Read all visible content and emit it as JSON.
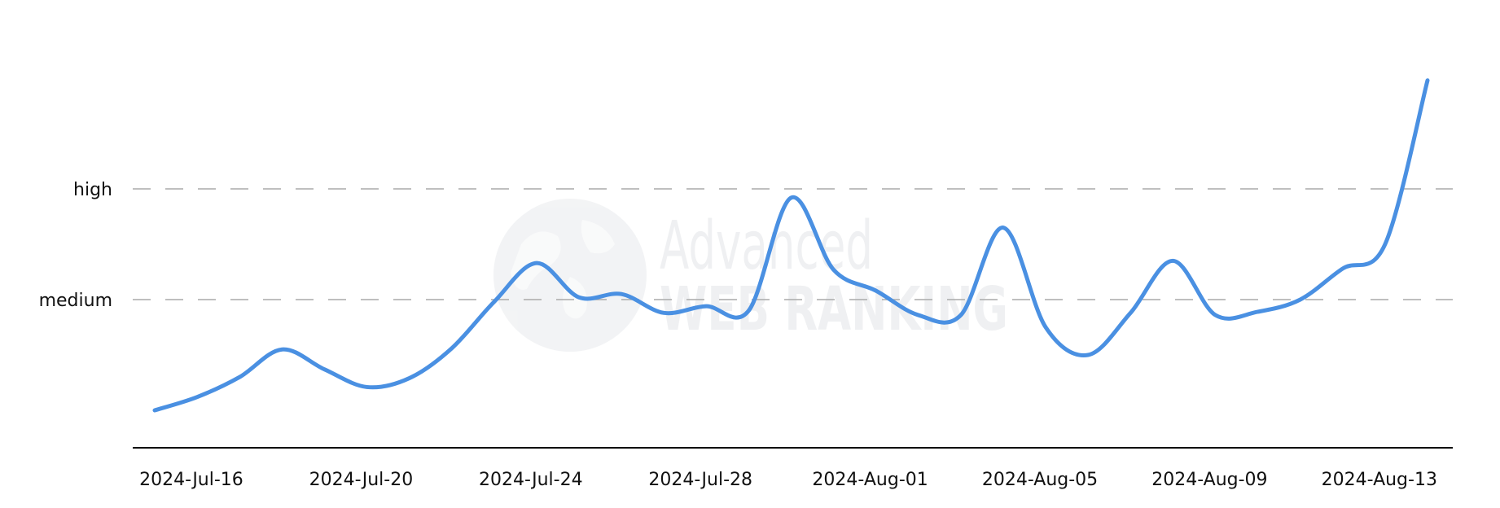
{
  "chart_data": {
    "type": "line",
    "title": "",
    "xlabel": "",
    "ylabel": "",
    "y_levels": [
      {
        "label": "high",
        "value": 3
      },
      {
        "label": "medium",
        "value": 2
      }
    ],
    "x_tick_labels": [
      "2024-Jul-16",
      "2024-Jul-20",
      "2024-Jul-24",
      "2024-Jul-28",
      "2024-Aug-01",
      "2024-Aug-05",
      "2024-Aug-09",
      "2024-Aug-13"
    ],
    "ylim": [
      0.67,
      3.98
    ],
    "grid": "dashed lines at high and medium",
    "colors": {
      "line": "#4a90e2",
      "grid": "#aaaaaa",
      "axis": "#000000"
    },
    "series": [
      {
        "values": [
          {
            "x": "2024-Jul-16",
            "y": 1.0
          },
          {
            "x": "2024-Jul-17",
            "y": 1.12
          },
          {
            "x": "2024-Jul-18",
            "y": 1.3
          },
          {
            "x": "2024-Jul-19",
            "y": 1.55
          },
          {
            "x": "2024-Jul-20",
            "y": 1.37
          },
          {
            "x": "2024-Jul-21",
            "y": 1.21
          },
          {
            "x": "2024-Jul-22",
            "y": 1.29
          },
          {
            "x": "2024-Jul-23",
            "y": 1.56
          },
          {
            "x": "2024-Jul-24",
            "y": 1.98
          },
          {
            "x": "2024-Jul-25",
            "y": 2.33
          },
          {
            "x": "2024-Jul-26",
            "y": 2.02
          },
          {
            "x": "2024-Jul-27",
            "y": 2.05
          },
          {
            "x": "2024-Jul-28",
            "y": 1.88
          },
          {
            "x": "2024-Jul-29",
            "y": 1.94
          },
          {
            "x": "2024-Jul-30",
            "y": 1.9
          },
          {
            "x": "2024-Jul-31",
            "y": 2.92
          },
          {
            "x": "2024-Aug-01",
            "y": 2.27
          },
          {
            "x": "2024-Aug-02",
            "y": 2.08
          },
          {
            "x": "2024-Aug-03",
            "y": 1.86
          },
          {
            "x": "2024-Aug-04",
            "y": 1.86
          },
          {
            "x": "2024-Aug-05",
            "y": 2.65
          },
          {
            "x": "2024-Aug-06",
            "y": 1.75
          },
          {
            "x": "2024-Aug-07",
            "y": 1.5
          },
          {
            "x": "2024-Aug-08",
            "y": 1.88
          },
          {
            "x": "2024-Aug-09",
            "y": 2.35
          },
          {
            "x": "2024-Aug-10",
            "y": 1.86
          },
          {
            "x": "2024-Aug-11",
            "y": 1.89
          },
          {
            "x": "2024-Aug-12",
            "y": 2.0
          },
          {
            "x": "2024-Aug-13",
            "y": 2.28
          },
          {
            "x": "2024-Aug-14",
            "y": 2.5
          },
          {
            "x": "2024-Aug-15",
            "y": 3.98
          }
        ]
      }
    ]
  },
  "watermark": {
    "line1": "Advanced",
    "line2": "WEB RANKING"
  }
}
